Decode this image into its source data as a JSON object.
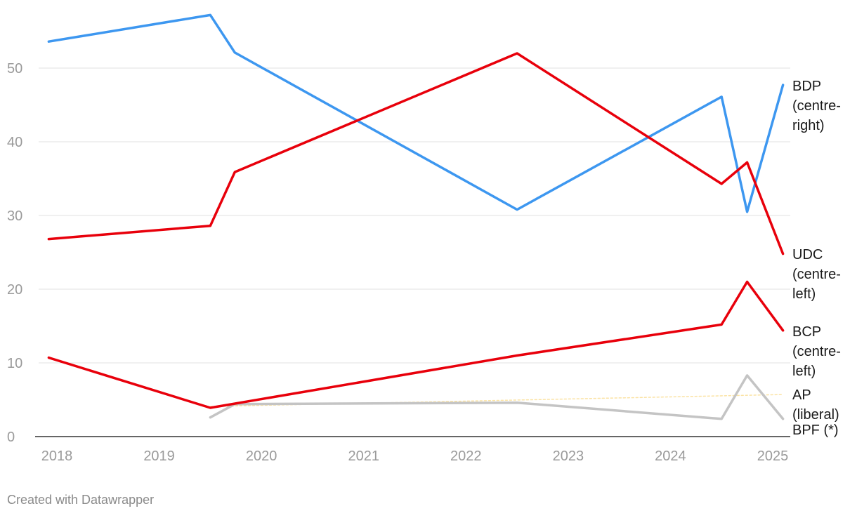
{
  "chart_data": {
    "type": "line",
    "title": "",
    "xlabel": "",
    "ylabel": "",
    "xlim": [
      2018,
      2025.2
    ],
    "ylim": [
      0,
      58
    ],
    "x_ticks": [
      "2018",
      "2019",
      "2020",
      "2021",
      "2022",
      "2023",
      "2024",
      "2025"
    ],
    "y_ticks": [
      "0",
      "10",
      "20",
      "30",
      "40",
      "50"
    ],
    "grid": true,
    "legend": "inline labels at right end",
    "series": [
      {
        "name": "BDP (centre-right)",
        "label_lines": [
          "BDP",
          "(centre-",
          "right)"
        ],
        "color": "#3d97f0",
        "style": "solid",
        "points": [
          [
            2017.92,
            53.6
          ],
          [
            2019.5,
            57.2
          ],
          [
            2019.74,
            52.1
          ],
          [
            2022.5,
            30.8
          ],
          [
            2024.5,
            46.1
          ],
          [
            2024.75,
            30.5
          ],
          [
            2025.1,
            47.7
          ]
        ]
      },
      {
        "name": "UDC (centre-left)",
        "label_lines": [
          "UDC",
          "(centre-",
          "left)"
        ],
        "color": "#e8000b",
        "style": "solid",
        "points": [
          [
            2017.92,
            26.8
          ],
          [
            2019.5,
            28.6
          ],
          [
            2019.74,
            35.9
          ],
          [
            2022.5,
            52.0
          ],
          [
            2024.5,
            34.3
          ],
          [
            2024.75,
            37.2
          ],
          [
            2025.1,
            24.8
          ]
        ]
      },
      {
        "name": "BCP (centre-left)",
        "label_lines": [
          "BCP",
          "(centre-",
          "left)"
        ],
        "color": "#e8000b",
        "style": "solid",
        "points": [
          [
            2017.92,
            10.7
          ],
          [
            2019.5,
            3.9
          ],
          [
            2022.5,
            11.0
          ],
          [
            2024.5,
            15.2
          ],
          [
            2024.75,
            21.0
          ],
          [
            2025.1,
            14.4
          ]
        ]
      },
      {
        "name": "AP (liberal)",
        "label_lines": [
          "AP",
          "(liberal)"
        ],
        "color": "#fbe3a4",
        "style": "dotted",
        "points": [
          [
            2019.5,
            4.1
          ],
          [
            2025.1,
            5.7
          ]
        ]
      },
      {
        "name": "BPF (*)",
        "label_lines": [
          "BPF (*)"
        ],
        "color": "#c4c4c4",
        "style": "solid",
        "points": [
          [
            2019.5,
            2.6
          ],
          [
            2019.74,
            4.4
          ],
          [
            2022.5,
            4.6
          ],
          [
            2024.5,
            2.4
          ],
          [
            2024.75,
            8.3
          ],
          [
            2025.1,
            2.4
          ]
        ]
      }
    ]
  },
  "footer": {
    "credit": "Created with Datawrapper"
  }
}
